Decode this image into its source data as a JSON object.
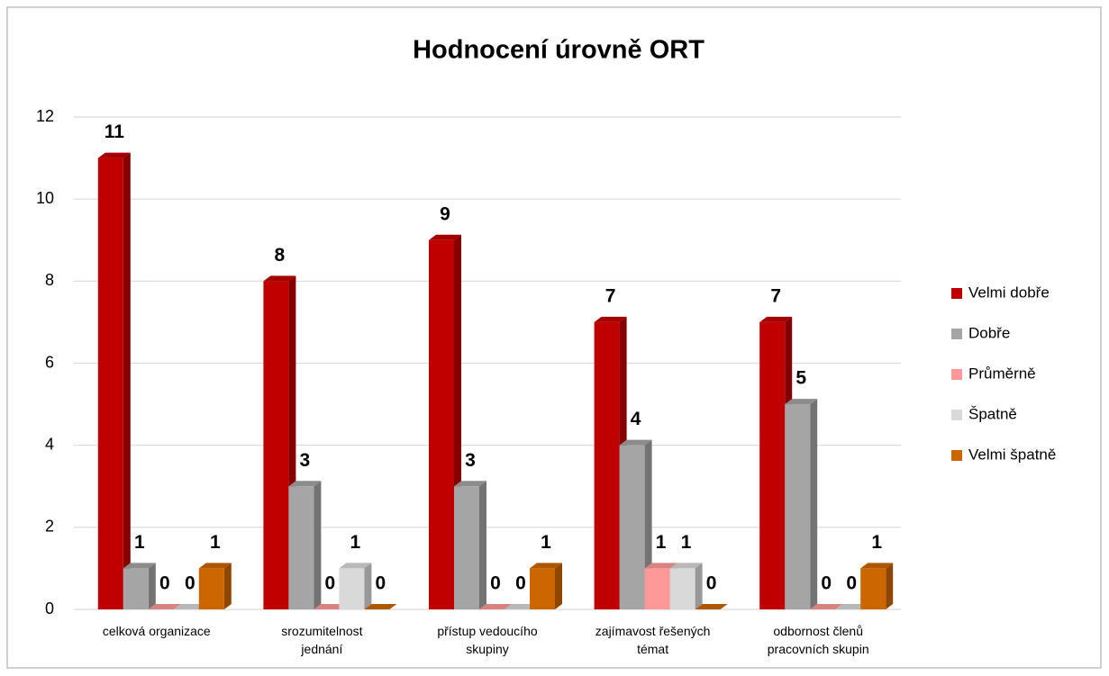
{
  "chart_data": {
    "type": "bar3d",
    "title": "Hodnocení úrovně ORT",
    "categories": [
      "celková organizace",
      "srozumitelnost jednání",
      "přístup vedoucího skupiny",
      "zajímavost řešených témat",
      "odbornost členů pracovních skupin"
    ],
    "series": [
      {
        "name": "Velmi dobře",
        "color": "#c00000",
        "values": [
          11,
          8,
          9,
          7,
          7
        ]
      },
      {
        "name": "Dobře",
        "color": "#a5a5a5",
        "values": [
          1,
          3,
          3,
          4,
          5
        ]
      },
      {
        "name": "Průměrně",
        "color": "#ff9999",
        "values": [
          0,
          0,
          0,
          1,
          0
        ]
      },
      {
        "name": "Špatně",
        "color": "#d9d9d9",
        "values": [
          0,
          1,
          0,
          1,
          0
        ]
      },
      {
        "name": "Velmi špatně",
        "color": "#cc6600",
        "values": [
          1,
          0,
          1,
          0,
          1
        ]
      }
    ],
    "ylim": [
      0,
      12
    ],
    "yticks": [
      0,
      2,
      4,
      6,
      8,
      10,
      12
    ],
    "grid": true,
    "legend": "right"
  }
}
